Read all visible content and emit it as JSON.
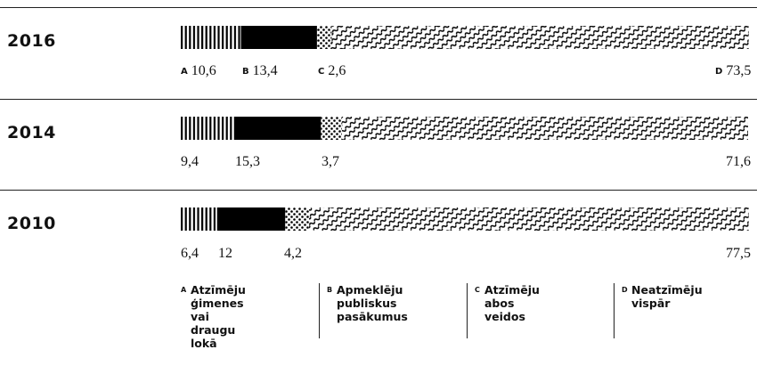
{
  "chart_data": {
    "type": "bar",
    "stacked": true,
    "orientation": "horizontal",
    "x_max": 100,
    "categories": [
      "2016",
      "2014",
      "2010"
    ],
    "series": [
      {
        "key": "A",
        "name": "Atzīmēju ģimenes vai draugu lokā",
        "pattern": "vertical-stripes",
        "values": [
          10.6,
          9.4,
          6.4
        ],
        "labels": [
          "10,6",
          "9,4",
          "6,4"
        ]
      },
      {
        "key": "B",
        "name": "Apmeklēju publiskus pasākumus",
        "pattern": "solid-black",
        "values": [
          13.4,
          15.3,
          12
        ],
        "labels": [
          "13,4",
          "15,3",
          "12"
        ]
      },
      {
        "key": "C",
        "name": "Atzīmēju abos veidos",
        "pattern": "dots",
        "values": [
          2.6,
          3.7,
          4.2
        ],
        "labels": [
          "2,6",
          "3,7",
          "4,2"
        ]
      },
      {
        "key": "D",
        "name": "Neatzīmēju vispār",
        "pattern": "waves",
        "values": [
          73.5,
          71.6,
          77.5
        ],
        "labels": [
          "73,5",
          "71,6",
          "77,5"
        ]
      }
    ]
  },
  "legend": [
    {
      "key": "A",
      "line1": "Atzīmēju",
      "line2": "ģimenes vai",
      "line3": "draugu lokā"
    },
    {
      "key": "B",
      "line1": "Apmeklēju",
      "line2": "publiskus",
      "line3": "pasākumus"
    },
    {
      "key": "C",
      "line1": "Atzīmēju",
      "line2": "abos veidos",
      "line3": ""
    },
    {
      "key": "D",
      "line1": "Neatzīmēju",
      "line2": "vispār",
      "line3": ""
    }
  ],
  "colors": {
    "ink": "#000000",
    "background": "#ffffff"
  }
}
